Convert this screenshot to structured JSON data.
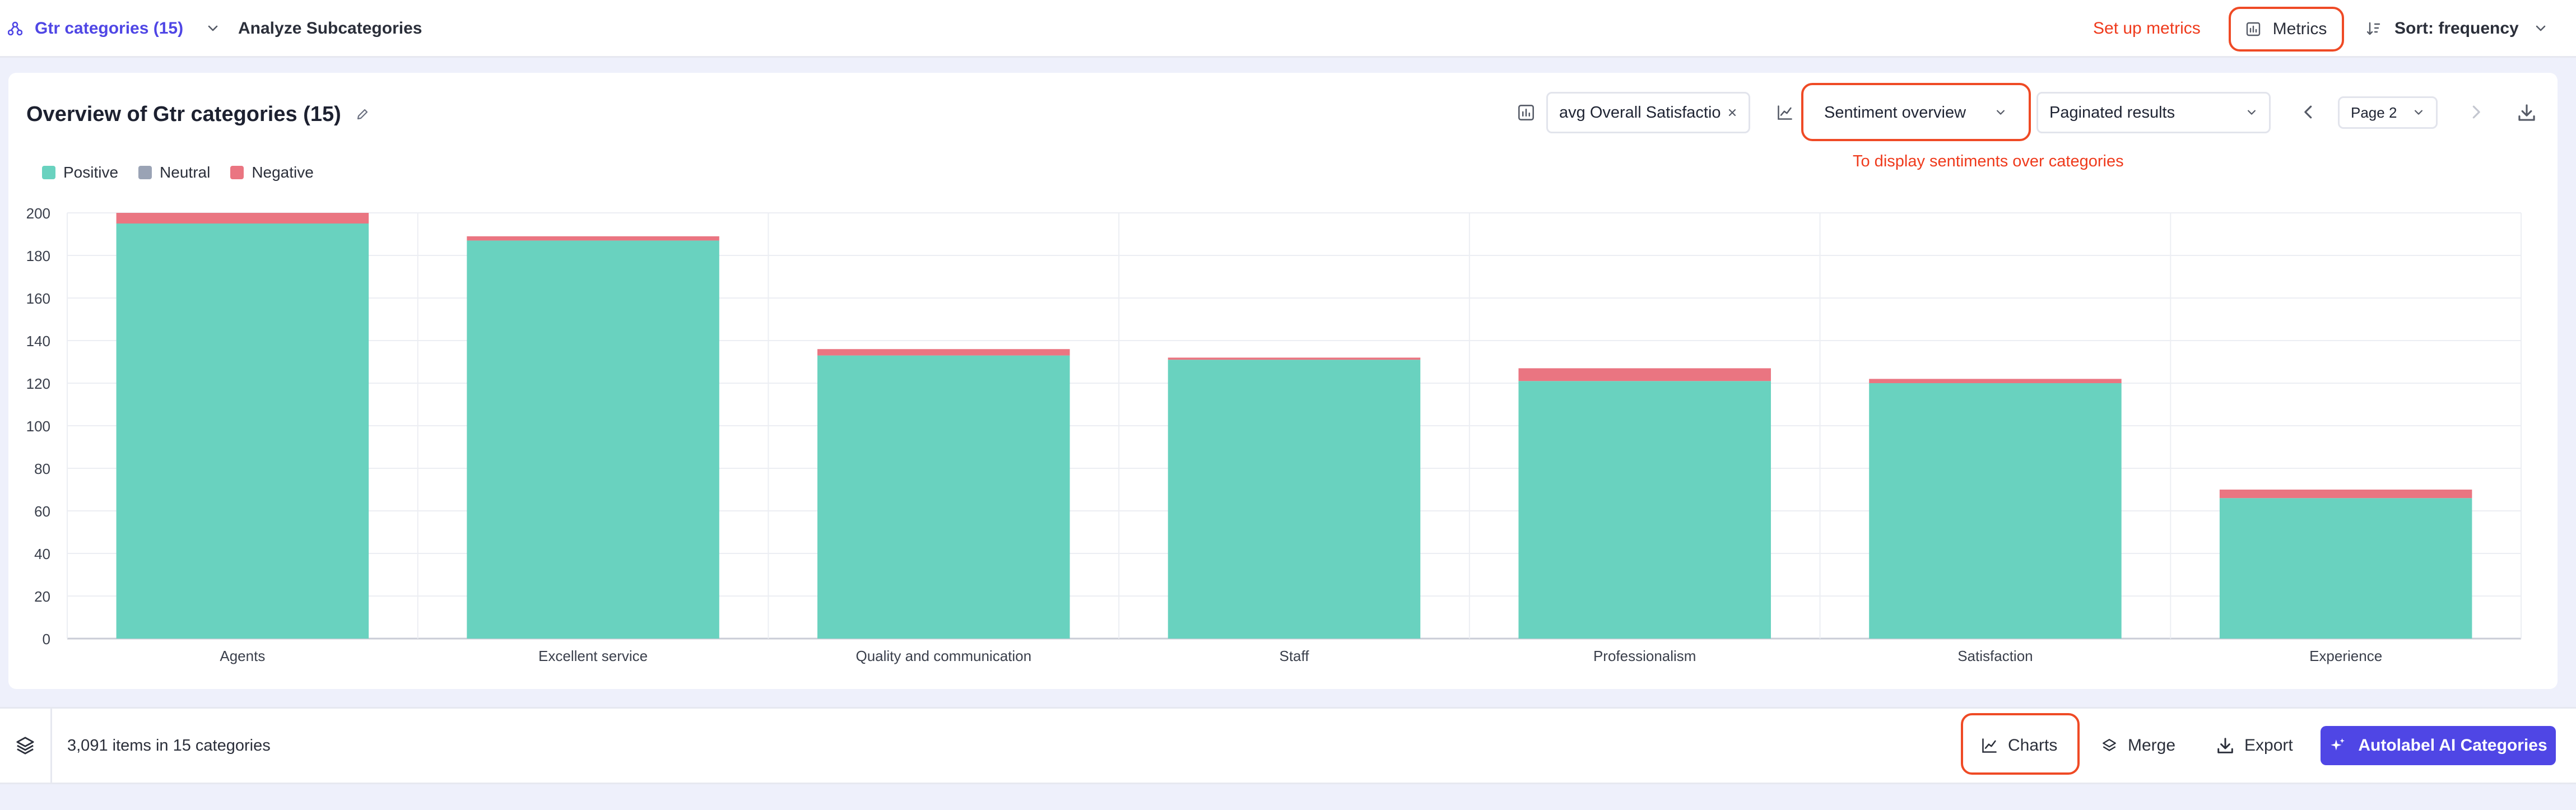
{
  "topbar": {
    "categories_label": "Gtr categories (15)",
    "analyze_label": "Analyze Subcategories",
    "setup_metrics_note": "Set up metrics",
    "metrics_label": "Metrics",
    "sort_label": "Sort: frequency"
  },
  "card": {
    "title": "Overview of Gtr categories (15)",
    "metric_select_value": "avg Overall Satisfactio...",
    "view_select_value": "Sentiment overview",
    "view_note": "To display sentiments over categories",
    "pagination_select_value": "Paginated results",
    "page_select_value": "Page 2"
  },
  "legend": [
    {
      "label": "Positive",
      "color": "#69d2bf"
    },
    {
      "label": "Neutral",
      "color": "#9aa3b5"
    },
    {
      "label": "Negative",
      "color": "#ea7581"
    }
  ],
  "chart_data": {
    "type": "bar",
    "stacked": true,
    "categories": [
      "Agents",
      "Excellent service",
      "Quality and communication",
      "Staff",
      "Professionalism",
      "Satisfaction",
      "Experience"
    ],
    "series": [
      {
        "name": "Positive",
        "color": "#69d2bf",
        "values": [
          195,
          187,
          133,
          131,
          121,
          120,
          66
        ]
      },
      {
        "name": "Neutral",
        "color": "#9aa3b5",
        "values": [
          0,
          0,
          0,
          0,
          0,
          0,
          0
        ]
      },
      {
        "name": "Negative",
        "color": "#ea7581",
        "values": [
          5,
          2,
          3,
          1,
          6,
          2,
          4
        ]
      }
    ],
    "ylim": [
      0,
      200
    ],
    "yticks": [
      "0",
      "20",
      "40",
      "60",
      "80",
      "100",
      "120",
      "140",
      "160",
      "180",
      "200"
    ],
    "grid": true,
    "legend_position": "top-left"
  },
  "bottombar": {
    "items_count": "3,091 items in 15 categories",
    "charts_label": "Charts",
    "merge_label": "Merge",
    "export_label": "Export",
    "autolabel_label": "Autolabel AI Categories"
  }
}
